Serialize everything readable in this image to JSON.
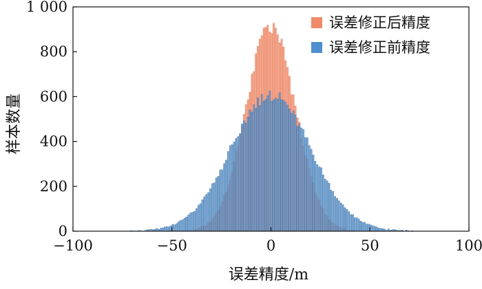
{
  "chart_data": {
    "type": "bar",
    "xlabel": "误差精度/m",
    "ylabel": "样本数量",
    "xlim": [
      -100,
      100
    ],
    "ylim": [
      0,
      1000
    ],
    "x_ticks": [
      "−100",
      "−50",
      "0",
      "50",
      "100"
    ],
    "y_ticks": [
      "0",
      "200",
      "400",
      "600",
      "800",
      "1 000"
    ],
    "legend_position": "top-right",
    "bin_width": 1,
    "series": [
      {
        "name": "误差修正后精度",
        "color": "#f08a6a",
        "distribution": "gaussian",
        "mean": 0,
        "std": 12.5,
        "x_range": [
          -45,
          45
        ],
        "peak": 915,
        "approx_total": 28000
      },
      {
        "name": "误差修正前精度",
        "color": "#4f8fcf",
        "distribution": "gaussian",
        "mean": 0,
        "std": 20.0,
        "x_range": [
          -72,
          72
        ],
        "peak": 610,
        "approx_total": 29000
      }
    ]
  }
}
